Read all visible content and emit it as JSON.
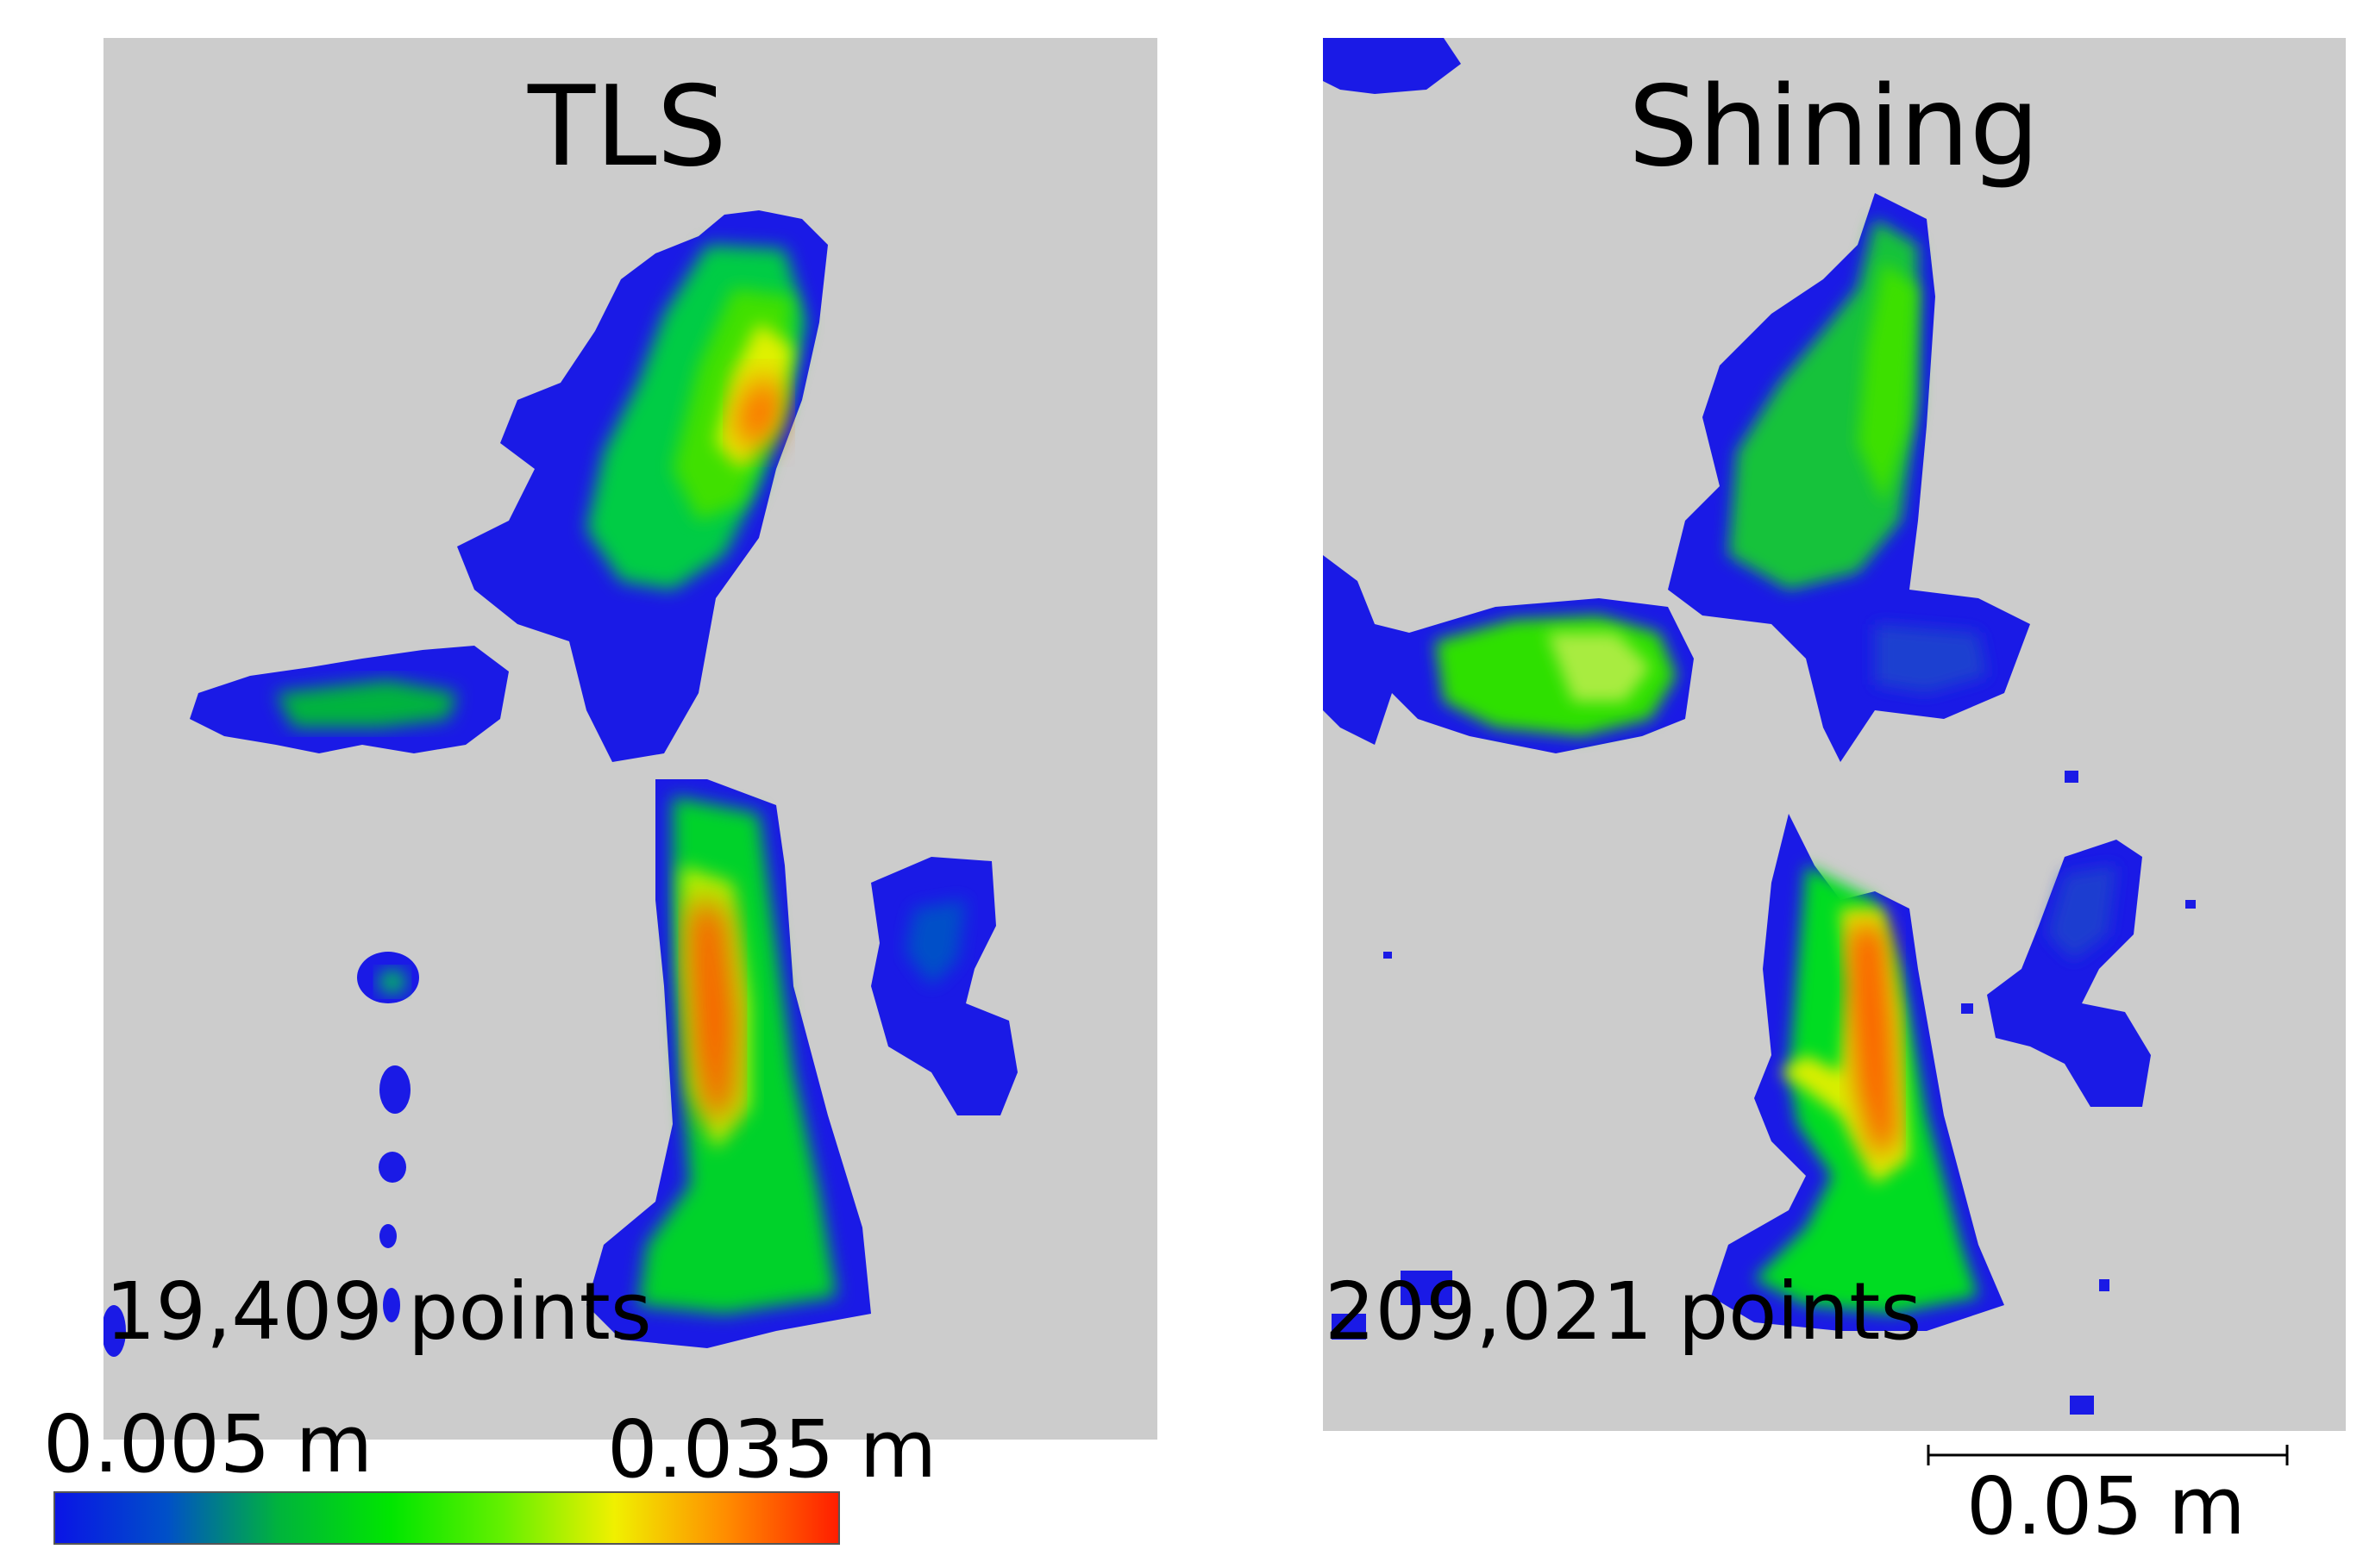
{
  "panels": {
    "tls": {
      "title": "TLS",
      "point_count": "19,409 points"
    },
    "shining": {
      "title": "Shining",
      "point_count": "209,021 points"
    }
  },
  "colorbar": {
    "min_label": "0.005 m",
    "max_label": "0.035 m",
    "colors": [
      "#0a14e6",
      "#0050c8",
      "#00b43c",
      "#00e600",
      "#64f000",
      "#f0f000",
      "#ff8c00",
      "#ff1e00"
    ]
  },
  "scalebar": {
    "label": "0.05 m"
  },
  "colors": {
    "background": "#cccccc",
    "low": "#0a14e6",
    "mid": "#00e600",
    "high": "#ff3200"
  }
}
